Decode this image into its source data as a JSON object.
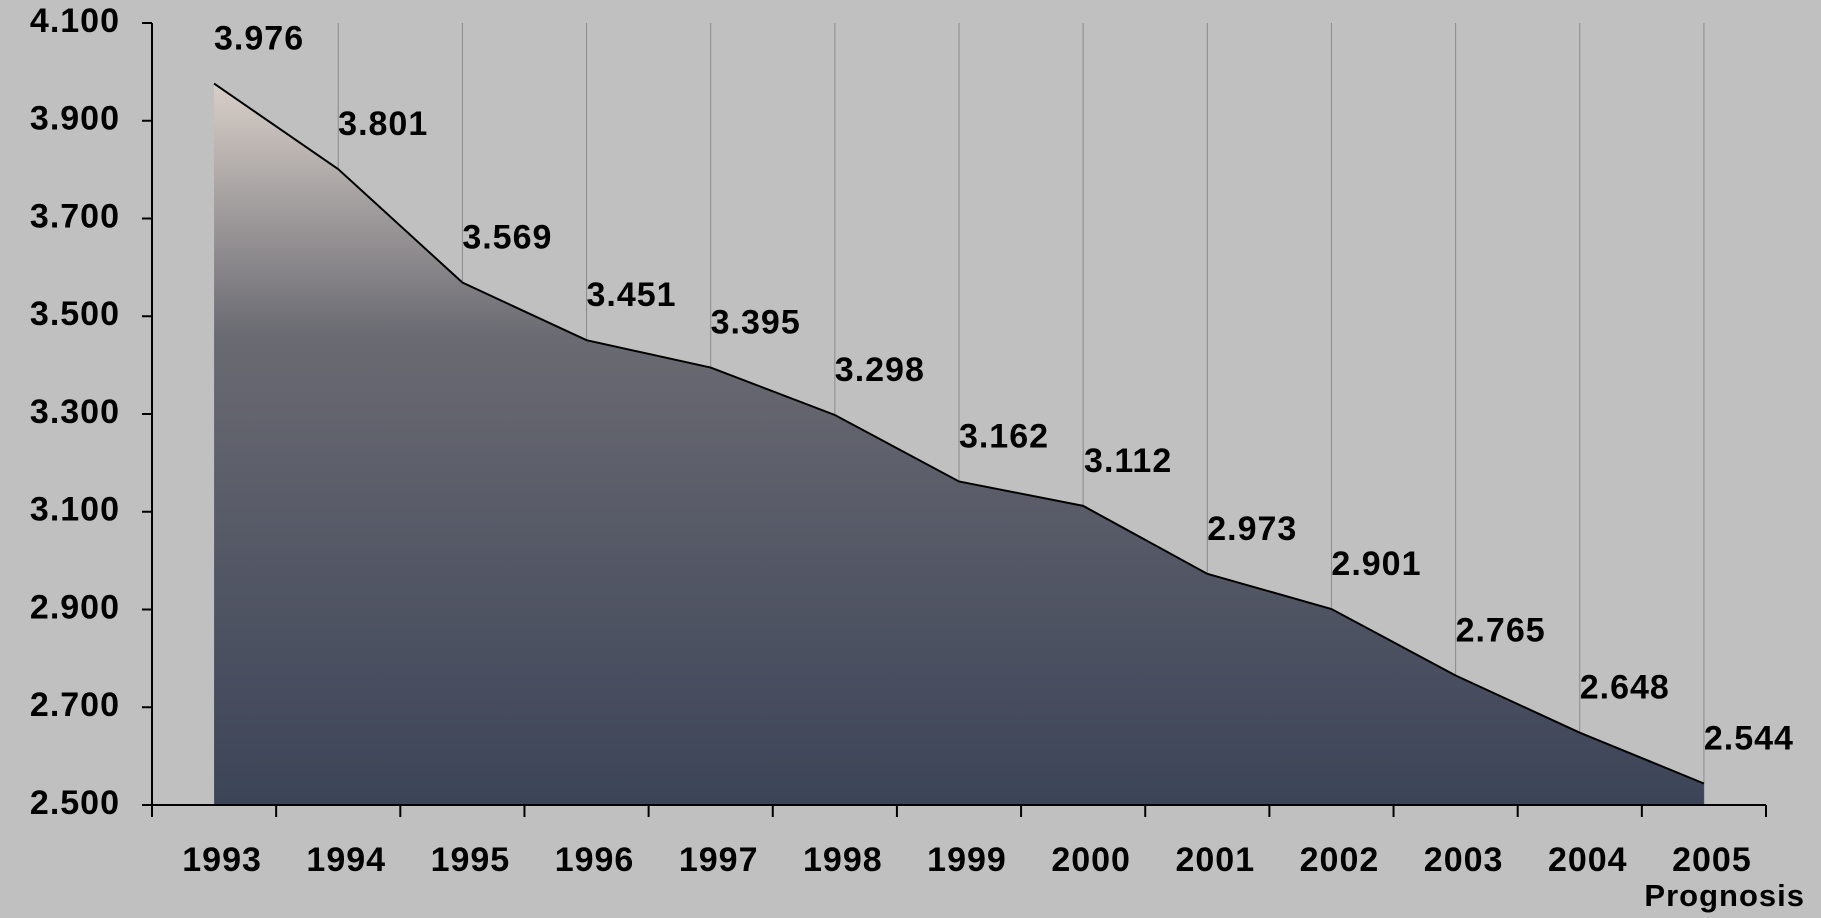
{
  "chart_data": {
    "type": "area",
    "categories": [
      "1993",
      "1994",
      "1995",
      "1996",
      "1997",
      "1998",
      "1999",
      "2000",
      "2001",
      "2002",
      "2003",
      "2004",
      "2005"
    ],
    "annotation": "Prognosis",
    "values": [
      3976,
      3801,
      3569,
      3451,
      3395,
      3298,
      3162,
      3112,
      2973,
      2901,
      2765,
      2648,
      2544
    ],
    "value_labels": [
      "3.976",
      "3.801",
      "3.569",
      "3.451",
      "3.395",
      "3.298",
      "3.162",
      "3.112",
      "2.973",
      "2.901",
      "2.765",
      "2.648",
      "2.544"
    ],
    "color": "#5a6478",
    "ylim": [
      2500,
      4100
    ],
    "yticks": [
      {
        "value": 2500,
        "label": "2.500"
      },
      {
        "value": 2700,
        "label": "2.700"
      },
      {
        "value": 2900,
        "label": "2.900"
      },
      {
        "value": 3100,
        "label": "3.100"
      },
      {
        "value": 3300,
        "label": "3.300"
      },
      {
        "value": 3500,
        "label": "3.500"
      },
      {
        "value": 3700,
        "label": "3.700"
      },
      {
        "value": 3900,
        "label": "3.900"
      },
      {
        "value": 4100,
        "label": "4.100"
      }
    ],
    "grid": true
  }
}
